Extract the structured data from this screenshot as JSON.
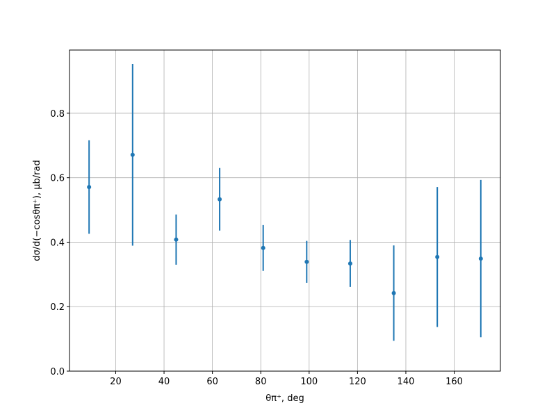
{
  "chart_data": {
    "type": "errorbar",
    "xlabel": "θπ⁺, deg",
    "ylabel": "dσ/d(−cosθπ⁺), μb/rad",
    "x": [
      9,
      27,
      45,
      63,
      81,
      99,
      117,
      135,
      153,
      171
    ],
    "series": [
      {
        "color": "#1f77b4",
        "values": [
          0.571,
          0.671,
          0.408,
          0.533,
          0.382,
          0.339,
          0.334,
          0.242,
          0.354,
          0.349
        ],
        "errors": [
          0.145,
          0.282,
          0.078,
          0.097,
          0.071,
          0.065,
          0.073,
          0.148,
          0.217,
          0.244
        ]
      }
    ],
    "xlim": [
      0.9,
      179.1
    ],
    "xticks": [
      20,
      40,
      60,
      80,
      100,
      120,
      140,
      160
    ],
    "ylim": [
      0,
      0.996
    ],
    "yticks": [
      {
        "value": 0,
        "label": "0.0"
      },
      0.2,
      0.4,
      0.6,
      0.8
    ],
    "grid": true
  }
}
